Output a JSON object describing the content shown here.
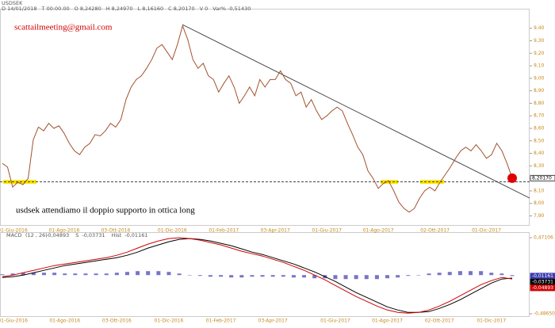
{
  "chart_data": [
    {
      "type": "line",
      "title": "USDSEK",
      "header_fields": [
        "D 14/01/2018",
        "T 00:00.00",
        "O 8,24280",
        "H 8,24970",
        "L 8,16160",
        "C 8,20170",
        "V 0",
        "Var% -0,51430"
      ],
      "annotations": [
        "scattailmeeting@gmail.com",
        "usdsek attendiamo il doppio supporto in ottica long"
      ],
      "categories": [
        null,
        null,
        "01-Giu-2016",
        null,
        null,
        null,
        null,
        null,
        null,
        null,
        null,
        null,
        "01-Ago-2016",
        null,
        null,
        null,
        null,
        null,
        null,
        null,
        null,
        null,
        "03-Ott-2016",
        null,
        null,
        null,
        null,
        null,
        null,
        null,
        null,
        null,
        null,
        "01-Dic-2016",
        null,
        null,
        null,
        null,
        null,
        null,
        null,
        null,
        null,
        "01-Feb-2017",
        null,
        null,
        null,
        null,
        null,
        null,
        null,
        null,
        null,
        "03-Apr-2017",
        null,
        null,
        null,
        null,
        null,
        null,
        null,
        null,
        null,
        "01-Giu-2017",
        null,
        null,
        null,
        null,
        null,
        null,
        null,
        null,
        null,
        "01-Ago-2017",
        null,
        null,
        null,
        null,
        null,
        null,
        null,
        null,
        null,
        null,
        "02-Ott-2017",
        null,
        null,
        null,
        null,
        null,
        null,
        null,
        null,
        null,
        "01-Dic-2017",
        null,
        null,
        null,
        null,
        null
      ],
      "series": [
        {
          "name": "USDSEK",
          "color": "#a0522d",
          "style": "line",
          "last_label": "8,20170",
          "values": [
            8.32,
            8.29,
            8.13,
            8.17,
            8.15,
            8.2,
            8.51,
            8.61,
            8.58,
            8.64,
            8.6,
            8.62,
            8.56,
            8.48,
            8.42,
            8.39,
            8.45,
            8.48,
            8.55,
            8.54,
            8.58,
            8.64,
            8.61,
            8.67,
            8.83,
            8.93,
            8.99,
            9.02,
            9.08,
            9.15,
            9.24,
            9.27,
            9.21,
            9.15,
            9.27,
            9.42,
            9.31,
            9.15,
            9.08,
            9.12,
            9.02,
            8.99,
            8.89,
            8.96,
            9.02,
            8.93,
            8.8,
            8.86,
            8.93,
            8.86,
            8.99,
            8.93,
            8.99,
            8.99,
            9.06,
            8.99,
            8.96,
            8.86,
            8.89,
            8.77,
            8.83,
            8.74,
            8.67,
            8.7,
            8.74,
            8.77,
            8.74,
            8.64,
            8.55,
            8.45,
            8.39,
            8.26,
            8.2,
            8.12,
            8.16,
            8.18,
            8.1,
            8.01,
            7.96,
            7.93,
            7.96,
            8.04,
            8.1,
            8.13,
            8.1,
            8.17,
            8.23,
            8.29,
            8.36,
            8.42,
            8.45,
            8.42,
            8.47,
            8.42,
            8.36,
            8.39,
            8.48,
            8.42,
            8.32,
            8.2017
          ]
        }
      ],
      "ylim": [
        7.84,
        9.55
      ],
      "yticks": [
        {
          "value": 7.9,
          "label": "7,90"
        },
        {
          "value": 8.0,
          "label": "8,00"
        },
        {
          "value": 8.1,
          "label": "8,10"
        },
        {
          "value": 8.2,
          "label": "8,20"
        },
        {
          "value": 8.3,
          "label": "8,30"
        },
        {
          "value": 8.4,
          "label": "8,40"
        },
        {
          "value": 8.5,
          "label": "8,50"
        },
        {
          "value": 8.6,
          "label": "8,60"
        },
        {
          "value": 8.7,
          "label": "8,70"
        },
        {
          "value": 8.8,
          "label": "8,80"
        },
        {
          "value": 8.9,
          "label": "8,90"
        },
        {
          "value": 9.0,
          "label": "9,00"
        },
        {
          "value": 9.1,
          "label": "9,10"
        },
        {
          "value": 9.2,
          "label": "9,20"
        },
        {
          "value": 9.3,
          "label": "9,30"
        },
        {
          "value": 9.4,
          "label": "9,40"
        }
      ]
    },
    {
      "type": "line",
      "title": "MACD",
      "subtitle": "(12 , 26)",
      "categories": [
        null,
        "01-Giu-2016",
        null,
        null,
        null,
        null,
        "01-Ago-2016",
        null,
        null,
        null,
        null,
        "03-Ott-2016",
        null,
        null,
        null,
        null,
        "01-Dic-2016",
        null,
        null,
        null,
        null,
        "01-Feb-2017",
        null,
        null,
        null,
        null,
        "03-Apr-2017",
        null,
        null,
        null,
        null,
        null,
        "01-Giu-2017",
        null,
        null,
        null,
        null,
        "01-Ago-2017",
        null,
        null,
        null,
        null,
        "02-Ott-2017",
        null,
        null,
        null,
        null,
        "01-Dic-2017",
        null,
        null
      ],
      "series": [
        {
          "name": "Hist",
          "color": "#3b3bb0",
          "style": "bar",
          "last_label": "-0,01161",
          "values": [
            0.01,
            0.02,
            0.03,
            0.03,
            0.03,
            0.03,
            0.02,
            0.02,
            0.02,
            0.02,
            0.02,
            0.03,
            0.04,
            0.05,
            0.05,
            0.05,
            0.04,
            0.02,
            0.0,
            -0.01,
            -0.02,
            -0.02,
            -0.03,
            -0.03,
            -0.02,
            -0.02,
            -0.02,
            -0.02,
            -0.03,
            -0.03,
            -0.04,
            -0.04,
            -0.05,
            -0.05,
            -0.05,
            -0.05,
            -0.05,
            -0.04,
            -0.03,
            -0.01,
            0.0,
            0.02,
            0.03,
            0.04,
            0.05,
            0.05,
            0.05,
            0.03,
            0.02,
            -0.01161
          ]
        },
        {
          "name": "S",
          "color": "#000000",
          "style": "line",
          "last_label": "-0,03731",
          "values": [
            -0.03,
            -0.02,
            0.0,
            0.03,
            0.06,
            0.09,
            0.12,
            0.14,
            0.16,
            0.18,
            0.2,
            0.22,
            0.25,
            0.29,
            0.34,
            0.38,
            0.42,
            0.45,
            0.46,
            0.45,
            0.43,
            0.4,
            0.37,
            0.33,
            0.29,
            0.26,
            0.22,
            0.18,
            0.14,
            0.09,
            0.04,
            -0.02,
            -0.08,
            -0.15,
            -0.22,
            -0.28,
            -0.34,
            -0.4,
            -0.44,
            -0.47,
            -0.47,
            -0.46,
            -0.42,
            -0.37,
            -0.31,
            -0.24,
            -0.17,
            -0.1,
            -0.05,
            -0.03731
          ]
        },
        {
          "name": "MACD",
          "color": "#d00000",
          "style": "line",
          "last_label": "-0,04893",
          "values": [
            -0.02,
            0.0,
            0.03,
            0.06,
            0.09,
            0.12,
            0.14,
            0.16,
            0.18,
            0.2,
            0.22,
            0.25,
            0.29,
            0.34,
            0.39,
            0.43,
            0.46,
            0.47,
            0.46,
            0.44,
            0.41,
            0.38,
            0.34,
            0.3,
            0.27,
            0.24,
            0.2,
            0.16,
            0.11,
            0.06,
            0.0,
            -0.06,
            -0.13,
            -0.2,
            -0.27,
            -0.33,
            -0.39,
            -0.44,
            -0.47,
            -0.48,
            -0.47,
            -0.44,
            -0.39,
            -0.33,
            -0.26,
            -0.19,
            -0.12,
            -0.07,
            -0.03,
            -0.04893
          ]
        }
      ],
      "ylim": [
        -0.4865,
        0.47106
      ],
      "yticks": [
        {
          "value": -0.4865,
          "label": "-0,48650"
        },
        {
          "value": 0.47106,
          "label": "0,47106"
        }
      ]
    }
  ]
}
